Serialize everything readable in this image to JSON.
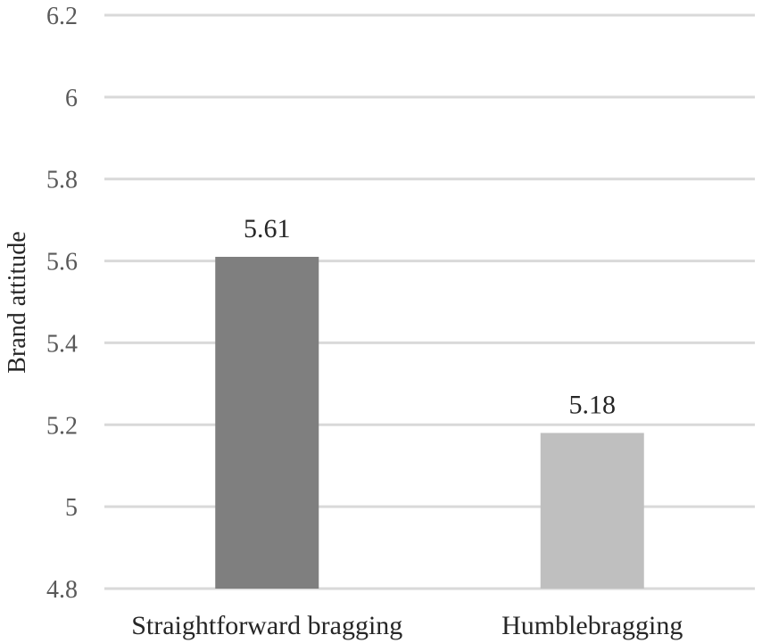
{
  "chart_data": {
    "type": "bar",
    "categories": [
      "Straightforward bragging",
      "Humblebragging"
    ],
    "values": [
      5.61,
      5.18
    ],
    "data_labels": [
      "5.61",
      "5.18"
    ],
    "bar_colors": [
      "#7f7f7f",
      "#bfbfbf"
    ],
    "title": "",
    "xlabel": "",
    "ylabel": "Brand attitude",
    "ylim": [
      4.8,
      6.2
    ],
    "yticks": [
      4.8,
      5,
      5.2,
      5.4,
      5.6,
      5.8,
      6,
      6.2
    ],
    "ytick_labels": [
      "4.8",
      "5",
      "5.2",
      "5.4",
      "5.6",
      "5.8",
      "6",
      "6.2"
    ],
    "grid": true,
    "gridline_color": "#d9d9d9",
    "legend": "none"
  }
}
